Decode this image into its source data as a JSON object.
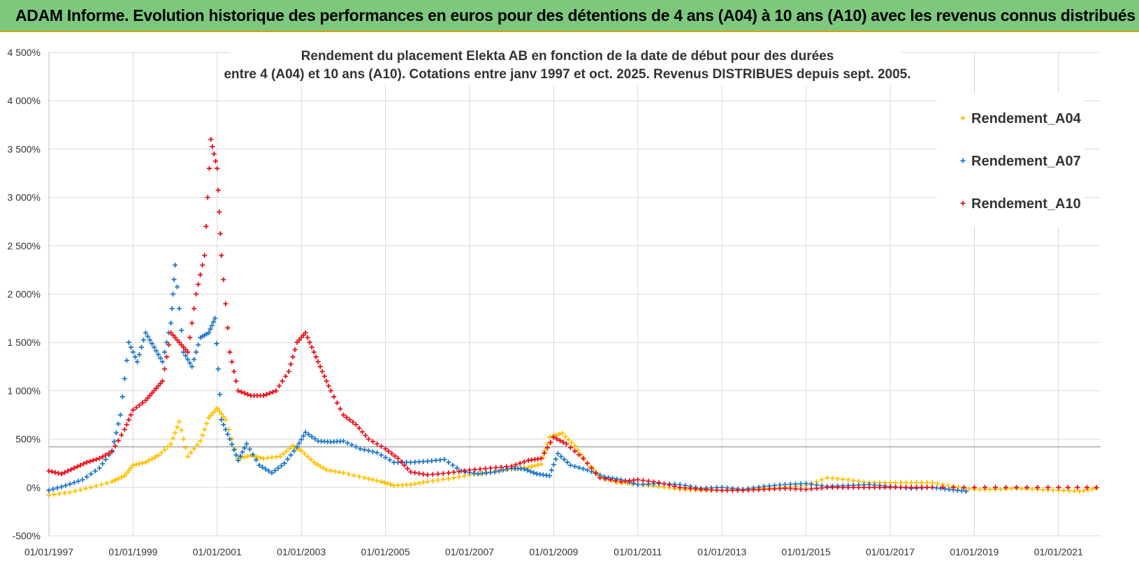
{
  "banner": {
    "title": "ADAM Informe. Evolution historique des performances en euros pour des détentions de 4 ans (A04) à 10 ans (A10) avec les revenus connus distribués"
  },
  "colors": {
    "A04": "#ffc000",
    "A07": "#1f77c8",
    "A10": "#e8101a",
    "banner": "#7dc87d"
  },
  "chart_data": {
    "type": "scatter",
    "title": [
      "Rendement du placement Elekta AB en fonction de la date de début pour des durées",
      "entre 4 (A04) et 10 ans (A10). Cotations entre janv 1997 et oct. 2025. Revenus DISTRIBUES depuis sept. 2005."
    ],
    "xlabel": "",
    "ylabel": "",
    "xlim": [
      1997.0,
      2022.0
    ],
    "ylim": [
      -500,
      4500
    ],
    "y_ticks": [
      -500,
      0,
      500,
      1000,
      1500,
      2000,
      2500,
      3000,
      3500,
      4000,
      4500
    ],
    "y_tick_labels": [
      "-500%",
      "0%",
      "500%",
      "1 000%",
      "1 500%",
      "2 000%",
      "2 500%",
      "3 000%",
      "3 500%",
      "4 000%",
      "4 500%"
    ],
    "x_ticks": [
      1997,
      1999,
      2001,
      2003,
      2005,
      2007,
      2009,
      2011,
      2013,
      2015,
      2017,
      2019,
      2021
    ],
    "x_tick_labels": [
      "01/01/1997",
      "01/01/1999",
      "01/01/2001",
      "01/01/2003",
      "01/01/2005",
      "01/01/2007",
      "01/01/2009",
      "01/01/2011",
      "01/01/2013",
      "01/01/2015",
      "01/01/2017",
      "01/01/2019",
      "01/01/2021"
    ],
    "reference_line_y": 420,
    "legend_position": "top-right",
    "grid": true,
    "series": [
      {
        "name": "Rendement_A04",
        "x": [
          1997.0,
          1997.5,
          1998.0,
          1998.5,
          1998.8,
          1999.0,
          1999.3,
          1999.6,
          1999.9,
          2000.1,
          2000.3,
          2000.6,
          2000.8,
          2001.0,
          2001.2,
          2001.5,
          2001.8,
          2002.1,
          2002.5,
          2002.8,
          2003.0,
          2003.3,
          2003.6,
          2004.0,
          2004.5,
          2004.9,
          2005.2,
          2005.6,
          2006.0,
          2006.5,
          2007.0,
          2007.5,
          2008.0,
          2008.4,
          2008.7,
          2008.9,
          2009.2,
          2009.5,
          2009.8,
          2010.1,
          2010.5,
          2011.0,
          2011.5,
          2012.0,
          2012.5,
          2013.0,
          2013.5,
          2014.0,
          2014.5,
          2015.0,
          2015.5,
          2016.0,
          2016.5,
          2017.0,
          2017.5,
          2018.0,
          2018.5,
          2019.0,
          2019.5,
          2020.0,
          2020.5,
          2021.0,
          2021.5,
          2021.9
        ],
        "y": [
          -80,
          -50,
          0,
          60,
          120,
          230,
          260,
          330,
          450,
          680,
          320,
          480,
          720,
          820,
          700,
          300,
          330,
          300,
          320,
          430,
          380,
          260,
          180,
          150,
          100,
          60,
          20,
          30,
          60,
          90,
          130,
          160,
          190,
          210,
          240,
          520,
          560,
          430,
          250,
          110,
          50,
          30,
          10,
          -20,
          -30,
          -30,
          -20,
          -10,
          0,
          20,
          100,
          80,
          50,
          50,
          50,
          50,
          10,
          -20,
          -20,
          -10,
          -20,
          -30,
          -40,
          -10
        ]
      },
      {
        "name": "Rendement_A07",
        "x": [
          1997.0,
          1997.4,
          1997.8,
          1998.2,
          1998.5,
          1998.7,
          1998.9,
          1999.1,
          1999.3,
          1999.5,
          1999.7,
          1999.9,
          2000.0,
          2000.2,
          2000.4,
          2000.6,
          2000.8,
          2000.95,
          2001.1,
          2001.3,
          2001.5,
          2001.7,
          2002.0,
          2002.3,
          2002.6,
          2002.9,
          2003.1,
          2003.4,
          2003.7,
          2004.0,
          2004.4,
          2004.8,
          2005.2,
          2005.6,
          2006.0,
          2006.4,
          2006.8,
          2007.2,
          2007.6,
          2008.0,
          2008.3,
          2008.6,
          2008.9,
          2009.1,
          2009.4,
          2009.8,
          2010.2,
          2010.6,
          2011.0,
          2011.5,
          2012.0,
          2012.5,
          2013.0,
          2013.5,
          2014.0,
          2014.5,
          2015.0,
          2015.5,
          2016.0,
          2016.5,
          2017.0,
          2017.5,
          2018.0,
          2018.4,
          2018.8
        ],
        "y": [
          -30,
          20,
          80,
          200,
          380,
          750,
          1500,
          1300,
          1600,
          1450,
          1300,
          1700,
          2300,
          1400,
          1250,
          1550,
          1600,
          1750,
          700,
          500,
          280,
          450,
          230,
          150,
          250,
          420,
          570,
          480,
          470,
          480,
          400,
          360,
          260,
          260,
          270,
          290,
          170,
          140,
          160,
          200,
          190,
          140,
          120,
          350,
          230,
          180,
          110,
          80,
          30,
          40,
          30,
          -10,
          0,
          -20,
          10,
          30,
          40,
          10,
          20,
          30,
          10,
          -10,
          0,
          -20,
          -40
        ]
      },
      {
        "name": "Rendement_A10",
        "x": [
          1997.0,
          1997.3,
          1997.6,
          1997.9,
          1998.2,
          1998.5,
          1998.8,
          1999.0,
          1999.3,
          1999.5,
          1999.7,
          1999.9,
          2000.1,
          2000.3,
          2000.5,
          2000.7,
          2000.85,
          2001.0,
          2001.1,
          2001.3,
          2001.5,
          2001.8,
          2002.1,
          2002.4,
          2002.7,
          2002.9,
          2003.1,
          2003.3,
          2003.5,
          2003.7,
          2004.0,
          2004.3,
          2004.6,
          2005.0,
          2005.3,
          2005.6,
          2006.0,
          2006.5,
          2007.0,
          2007.5,
          2008.0,
          2008.4,
          2008.7,
          2009.0,
          2009.3,
          2009.7,
          2010.1,
          2010.6,
          2011.0,
          2011.5,
          2012.0,
          2012.5,
          2013.0,
          2013.5,
          2014.0,
          2014.5,
          2015.0,
          2015.5,
          2016.0,
          2016.5,
          2017.0,
          2017.5,
          2018.0,
          2019.0,
          2020.0,
          2021.0,
          2021.9
        ],
        "y": [
          170,
          140,
          200,
          260,
          300,
          370,
          600,
          800,
          900,
          1000,
          1100,
          1600,
          1500,
          1400,
          2000,
          2400,
          3600,
          3300,
          2400,
          1400,
          1000,
          950,
          950,
          1000,
          1200,
          1500,
          1600,
          1400,
          1200,
          1000,
          750,
          650,
          500,
          400,
          300,
          160,
          130,
          150,
          180,
          200,
          220,
          280,
          300,
          520,
          450,
          300,
          100,
          60,
          80,
          50,
          0,
          -20,
          -30,
          -30,
          -20,
          -10,
          -20,
          0,
          0,
          0,
          0,
          0,
          0,
          0,
          0,
          0,
          0
        ]
      }
    ]
  }
}
